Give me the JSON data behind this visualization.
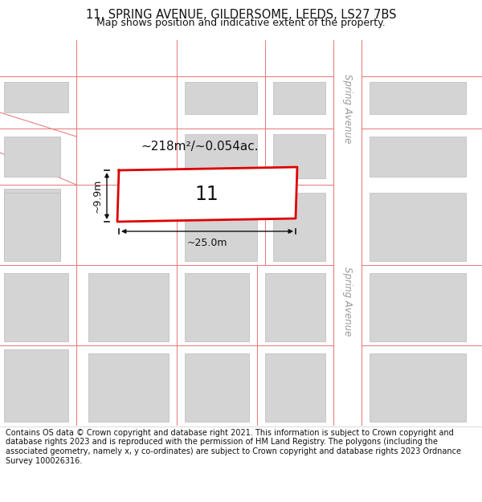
{
  "title_line1": "11, SPRING AVENUE, GILDERSOME, LEEDS, LS27 7BS",
  "title_line2": "Map shows position and indicative extent of the property.",
  "footer_text": "Contains OS data © Crown copyright and database right 2021. This information is subject to Crown copyright and database rights 2023 and is reproduced with the permission of HM Land Registry. The polygons (including the associated geometry, namely x, y co-ordinates) are subject to Crown copyright and database rights 2023 Ordnance Survey 100026316.",
  "background_color": "#ffffff",
  "map_bg_color": "#f5f5f5",
  "road_color": "#e88080",
  "plot_outline_color": "#dd0000",
  "plot_fill_color": "#ffffff",
  "building_fill_color": "#d4d4d4",
  "building_outline_color": "#bbbbbb",
  "street_label_color": "#999999",
  "measurement_color": "#111111",
  "label_11": "11",
  "area_label": "~218m²/~0.054ac.",
  "width_label": "~25.0m",
  "height_label": "~9.9m",
  "street_name": "Spring Avenue",
  "title_fontsize": 10.5,
  "subtitle_fontsize": 9,
  "footer_fontsize": 7.0
}
